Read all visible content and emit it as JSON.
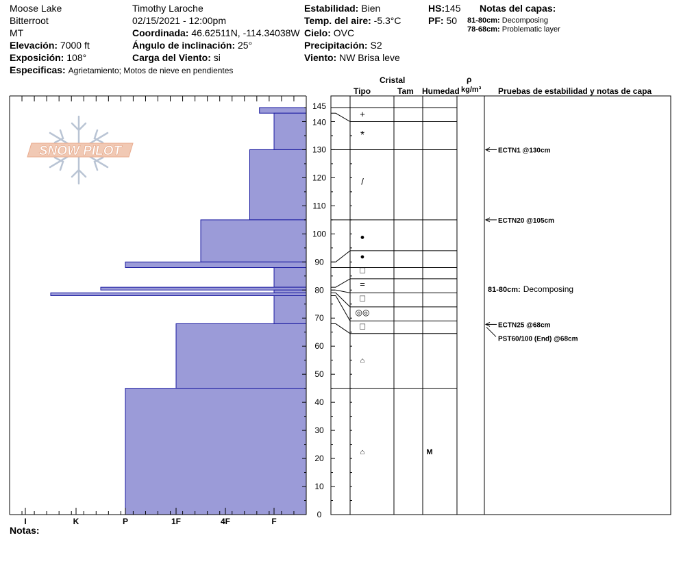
{
  "header": {
    "location": "Moose Lake",
    "range": "Bitterroot",
    "state": "MT",
    "elevation_label": "Elevación:",
    "elevation": "7000 ft",
    "exposure_label": "Exposición:",
    "exposure": "108°",
    "specifics_label": "Especificas:",
    "specifics": "Agrietamiento;  Motos de nieve en pendientes",
    "observer": "Timothy  Laroche",
    "datetime": "02/15/2021 - 12:00pm",
    "coord_label": "Coordinada:",
    "coord": "46.62511N, -114.34038W",
    "slope_label": "Ángulo de inclinación:",
    "slope": "25°",
    "wind_load_label": "Carga del Viento:",
    "wind_load": "si",
    "stability_label": "Estabilidad:",
    "stability": "Bien",
    "air_temp_label": "Temp. del aire:",
    "air_temp": "-5.3°C",
    "sky_label": "Cielo:",
    "sky": "OVC",
    "precip_label": "Precipitación:",
    "precip": "S2",
    "wind_label": "Viento:",
    "wind": "NW Brisa leve",
    "hs_label": "HS:",
    "hs": "145",
    "pf_label": "PF:",
    "pf": "50",
    "layer_notes_title": "Notas del capas:",
    "layer_notes": [
      {
        "range": "81-80cm:",
        "text": "Decomposing"
      },
      {
        "range": "78-68cm:",
        "text": "Problematic layer"
      }
    ],
    "notes_label": "Notas:"
  },
  "columns": {
    "cristal": "Cristal",
    "tipo": "Tipo",
    "tam": "Tam",
    "humedad": "Humedad",
    "rho": "ρ",
    "density_unit": "kg/m³",
    "tests_title": "Pruebas de estabilidad y notas de capa"
  },
  "logo_text": "SNOW PILOT",
  "chart_data": {
    "type": "bar",
    "orientation": "horizontal",
    "y_axis": {
      "range": [
        0,
        145
      ],
      "tick_step": 10,
      "extra_tick": 145,
      "tick_labels": [
        "0",
        "10",
        "20",
        "30",
        "40",
        "50",
        "60",
        "70",
        "80",
        "90",
        "100",
        "110",
        "120",
        "130",
        "140",
        "145"
      ]
    },
    "hardness_scale": [
      "I",
      "K",
      "P",
      "1F",
      "4F",
      "F"
    ],
    "layers": [
      {
        "top": 145,
        "bottom": 143,
        "hardness": 1.3
      },
      {
        "top": 143,
        "bottom": 130,
        "hardness": 1.0
      },
      {
        "top": 130,
        "bottom": 105,
        "hardness": 1.5
      },
      {
        "top": 105,
        "bottom": 90,
        "hardness": 2.5
      },
      {
        "top": 90,
        "bottom": 88,
        "hardness": 4.0
      },
      {
        "top": 88,
        "bottom": 81,
        "hardness": 1.0
      },
      {
        "top": 81,
        "bottom": 80,
        "hardness": 4.5
      },
      {
        "top": 80,
        "bottom": 79,
        "hardness": 1.0
      },
      {
        "top": 79,
        "bottom": 78,
        "hardness": 5.5
      },
      {
        "top": 78,
        "bottom": 68,
        "hardness": 1.0
      },
      {
        "top": 68,
        "bottom": 45,
        "hardness": 3.0
      },
      {
        "top": 45,
        "bottom": 0,
        "hardness": 4.0
      }
    ],
    "crystal_symbols": [
      {
        "depth": 142.5,
        "symbol": "+"
      },
      {
        "depth": 135,
        "symbol": "*"
      },
      {
        "depth": 118.5,
        "symbol": "/"
      },
      {
        "depth": 99,
        "symbol": "●"
      },
      {
        "depth": 92,
        "symbol": "●"
      },
      {
        "depth": 87,
        "symbol": "□"
      },
      {
        "depth": 82,
        "symbol": "="
      },
      {
        "depth": 77,
        "symbol": "□"
      },
      {
        "depth": 72,
        "symbol": "◎◎"
      },
      {
        "depth": 67,
        "symbol": "□"
      },
      {
        "depth": 55,
        "symbol": "⌂"
      },
      {
        "depth": 22.5,
        "symbol": "⌂"
      }
    ],
    "moisture": [
      {
        "depth": 22.5,
        "value": "M"
      }
    ],
    "stability_tests": [
      {
        "depth": 130,
        "label": "ECTN1 @130cm"
      },
      {
        "depth": 105,
        "label": "ECTN20 @105cm"
      },
      {
        "depth": 68,
        "label": "ECTN25 @68cm"
      },
      {
        "depth": 68,
        "label": "PST60/100 (End) @68cm"
      }
    ],
    "layer_note": {
      "depth": 80.5,
      "range": "81-80cm:",
      "text": "Decomposing"
    },
    "colors": {
      "bar_fill": "#9b9bd8",
      "bar_stroke": "#1a1aa0"
    }
  }
}
